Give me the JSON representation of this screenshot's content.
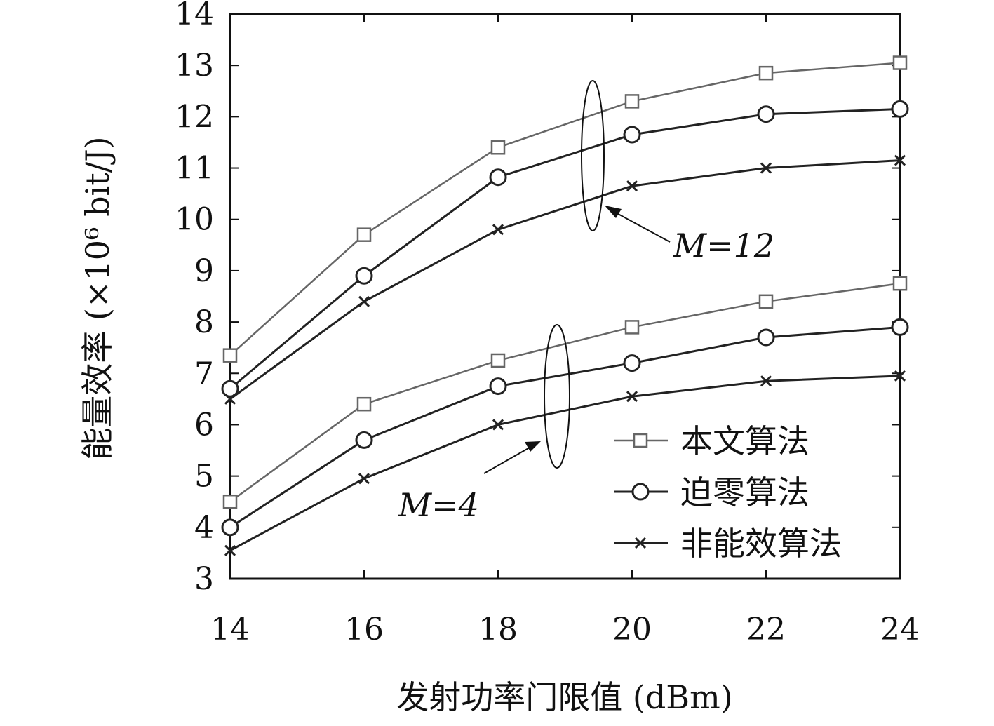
{
  "chart_data": {
    "type": "line",
    "xlabel": "发射功率门限值 (dBm)",
    "ylabel": "能量效率 (×10⁶ bit/J)",
    "xlim": [
      14,
      24
    ],
    "ylim": [
      3,
      14
    ],
    "x_ticks": [
      14,
      16,
      18,
      20,
      22,
      24
    ],
    "y_ticks": [
      3,
      4,
      5,
      6,
      7,
      8,
      9,
      10,
      11,
      12,
      13,
      14
    ],
    "grid": false,
    "legend_position": "bottom-right",
    "x": [
      14,
      16,
      18,
      20,
      22,
      24
    ],
    "series": [
      {
        "name": "本文算法",
        "group": "M=12",
        "marker": "square",
        "color": "#666666",
        "values": [
          7.35,
          9.7,
          11.4,
          12.3,
          12.85,
          13.05
        ]
      },
      {
        "name": "迫零算法",
        "group": "M=12",
        "marker": "circle",
        "color": "#222222",
        "values": [
          6.7,
          8.9,
          10.82,
          11.65,
          12.05,
          12.15
        ]
      },
      {
        "name": "非能效算法",
        "group": "M=12",
        "marker": "x",
        "color": "#222222",
        "values": [
          6.5,
          8.4,
          9.8,
          10.65,
          11.0,
          11.15
        ]
      },
      {
        "name": "本文算法",
        "group": "M=4",
        "marker": "square",
        "color": "#666666",
        "values": [
          4.5,
          6.4,
          7.25,
          7.9,
          8.4,
          8.75
        ]
      },
      {
        "name": "迫零算法",
        "group": "M=4",
        "marker": "circle",
        "color": "#222222",
        "values": [
          4.0,
          5.7,
          6.75,
          7.2,
          7.7,
          7.9
        ]
      },
      {
        "name": "非能效算法",
        "group": "M=4",
        "marker": "x",
        "color": "#222222",
        "values": [
          3.55,
          4.95,
          6.0,
          6.55,
          6.85,
          6.95
        ]
      }
    ],
    "legend": [
      {
        "label": "本文算法",
        "marker": "square",
        "color": "#666666"
      },
      {
        "label": "迫零算法",
        "marker": "circle",
        "color": "#222222"
      },
      {
        "label": "非能效算法",
        "marker": "x",
        "color": "#222222"
      }
    ],
    "annotations": [
      {
        "text": "M=12"
      },
      {
        "text": "M=4"
      }
    ]
  }
}
